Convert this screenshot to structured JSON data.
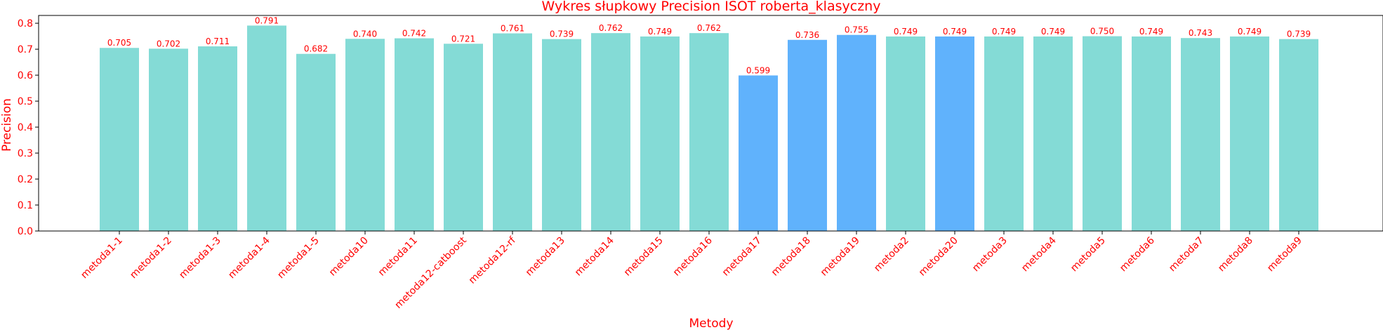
{
  "chart_data": {
    "type": "bar",
    "title": "Wykres słupkowy Precision ISOT roberta_klasyczny",
    "xlabel": "Metody",
    "ylabel": "Precision",
    "ylim": [
      0,
      0.83
    ],
    "yticks": [
      "0.0",
      "0.1",
      "0.2",
      "0.3",
      "0.4",
      "0.5",
      "0.6",
      "0.7",
      "0.8"
    ],
    "categories": [
      "metoda1-1",
      "metoda1-2",
      "metoda1-3",
      "metoda1-4",
      "metoda1-5",
      "metoda10",
      "metoda11",
      "metoda12-catboost",
      "metoda12-rf",
      "metoda13",
      "metoda14",
      "metoda15",
      "metoda16",
      "metoda17",
      "metoda18",
      "metoda19",
      "metoda2",
      "metoda20",
      "metoda3",
      "metoda4",
      "metoda5",
      "metoda6",
      "metoda7",
      "metoda8",
      "metoda9"
    ],
    "values": [
      0.705,
      0.702,
      0.711,
      0.791,
      0.682,
      0.74,
      0.742,
      0.721,
      0.761,
      0.739,
      0.762,
      0.749,
      0.762,
      0.599,
      0.736,
      0.755,
      0.749,
      0.749,
      0.749,
      0.749,
      0.75,
      0.749,
      0.743,
      0.749,
      0.739
    ],
    "value_labels": [
      "0.705",
      "0.702",
      "0.711",
      "0.791",
      "0.682",
      "0.740",
      "0.742",
      "0.721",
      "0.761",
      "0.739",
      "0.762",
      "0.749",
      "0.762",
      "0.599",
      "0.736",
      "0.755",
      "0.749",
      "0.749",
      "0.749",
      "0.749",
      "0.750",
      "0.749",
      "0.743",
      "0.749",
      "0.739"
    ],
    "highlighted": [
      false,
      false,
      false,
      false,
      false,
      false,
      false,
      false,
      false,
      false,
      false,
      false,
      false,
      true,
      true,
      true,
      false,
      true,
      false,
      false,
      false,
      false,
      false,
      false,
      false
    ],
    "colors": {
      "bar": "#84dbd6",
      "highlight": "#60b2fc",
      "text": "#ff0000",
      "axis": "#000000"
    },
    "grid": false,
    "legend": "none"
  }
}
